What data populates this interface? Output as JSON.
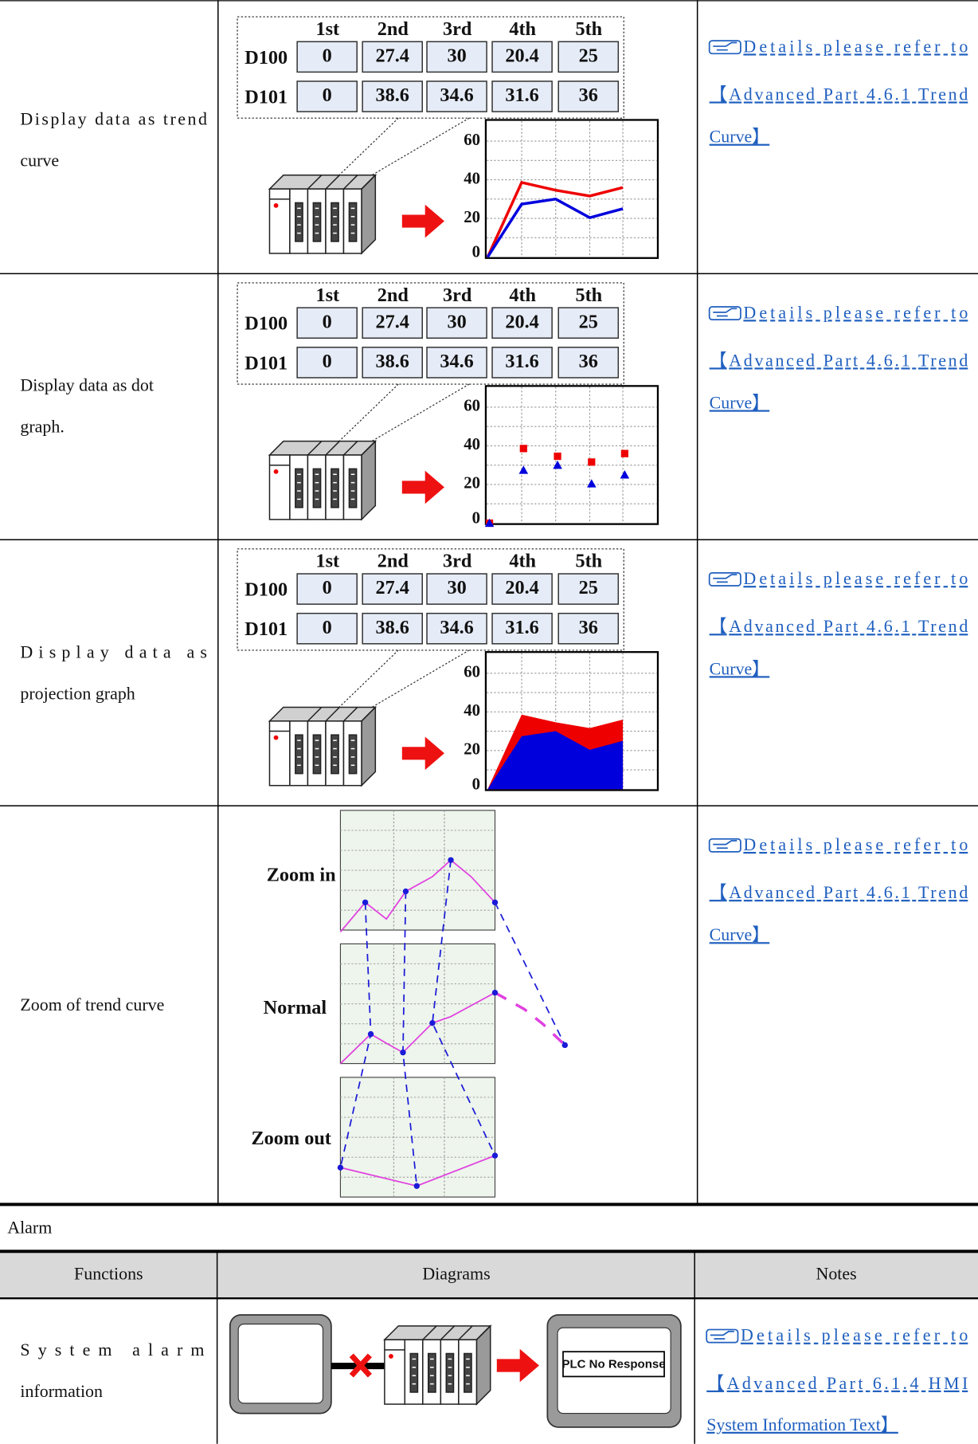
{
  "table1": {
    "rows": [
      {
        "function": [
          "Display data as trend",
          "curve"
        ],
        "diagram": {
          "type": "line",
          "columns": [
            "1st",
            "2nd",
            "3rd",
            "4th",
            "5th"
          ],
          "rows": [
            {
              "label": "D100",
              "color": "#0000dd",
              "values": [
                0,
                27.4,
                30,
                20.4,
                25
              ]
            },
            {
              "label": "D101",
              "color": "#ee0000",
              "values": [
                0,
                38.6,
                34.6,
                31.6,
                36
              ]
            }
          ],
          "yticks": [
            60,
            40,
            20,
            0
          ]
        },
        "notes": [
          "Details please refer to",
          "【Advanced Part 4.6.1 Trend",
          "Curve】"
        ]
      },
      {
        "function": [
          "Display data as dot",
          "graph."
        ],
        "diagram": {
          "type": "scatter",
          "columns": [
            "1st",
            "2nd",
            "3rd",
            "4th",
            "5th"
          ],
          "rows": [
            {
              "label": "D100",
              "color": "#0000dd",
              "values": [
                0,
                27.4,
                30,
                20.4,
                25
              ]
            },
            {
              "label": "D101",
              "color": "#ee0000",
              "values": [
                0,
                38.6,
                34.6,
                31.6,
                36
              ]
            }
          ],
          "yticks": [
            60,
            40,
            20,
            0
          ]
        },
        "notes": [
          "Details please refer to",
          "【Advanced Part 4.6.1 Trend",
          "Curve】"
        ]
      },
      {
        "function": [
          "Display data as",
          "projection graph"
        ],
        "diagram": {
          "type": "area",
          "columns": [
            "1st",
            "2nd",
            "3rd",
            "4th",
            "5th"
          ],
          "rows": [
            {
              "label": "D100",
              "color": "#0000dd",
              "values": [
                0,
                27.4,
                30,
                20.4,
                25
              ]
            },
            {
              "label": "D101",
              "color": "#ee0000",
              "values": [
                0,
                38.6,
                34.6,
                31.6,
                36
              ]
            }
          ],
          "yticks": [
            60,
            40,
            20,
            0
          ]
        },
        "notes": [
          "Details please refer to",
          "【Advanced Part 4.6.1 Trend",
          "Curve】"
        ]
      },
      {
        "function": [
          "Zoom of trend curve"
        ],
        "diagram": {
          "labels": [
            "Zoom in",
            "Normal",
            "Zoom out"
          ]
        },
        "notes": [
          "Details please refer to",
          "【Advanced Part 4.6.1 Trend",
          "Curve】"
        ]
      }
    ]
  },
  "section": "Alarm",
  "table2": {
    "headers": [
      "Functions",
      "Diagrams",
      "Notes"
    ],
    "rows": [
      {
        "function": [
          "System alarm",
          "information"
        ],
        "diagram": {
          "message": "PLC No Response"
        },
        "notes": [
          "Details please refer to",
          "【Advanced Part 6.1.4 HMI",
          "System Information Text】"
        ]
      }
    ]
  }
}
